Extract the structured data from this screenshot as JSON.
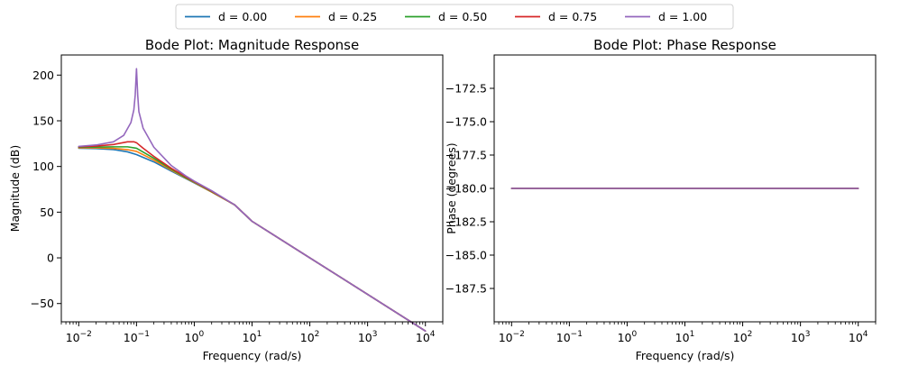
{
  "legend": {
    "placement": "top-center",
    "entries": [
      "d = 0.00",
      "d = 0.25",
      "d = 0.50",
      "d = 0.75",
      "d = 1.00"
    ]
  },
  "colors": {
    "series": [
      "#1f77b4",
      "#ff7f0e",
      "#2ca02c",
      "#d62728",
      "#9467bd"
    ],
    "axis": "#000000",
    "background": "#ffffff"
  },
  "chart_data": [
    {
      "type": "line",
      "title": "Bode Plot: Magnitude Response",
      "xlabel": "Frequency (rad/s)",
      "ylabel": "Magnitude (dB)",
      "xscale": "log",
      "xlim": [
        0.005,
        20000
      ],
      "ylim": [
        -70,
        222
      ],
      "grid": false,
      "xticks": [
        0.01,
        0.1,
        1,
        10,
        100,
        1000,
        10000
      ],
      "xtick_labels": [
        "10^-2",
        "10^-1",
        "10^0",
        "10^1",
        "10^2",
        "10^3",
        "10^4"
      ],
      "yticks": [
        -50,
        0,
        50,
        100,
        150,
        200
      ],
      "ytick_labels": [
        "−50",
        "0",
        "50",
        "100",
        "150",
        "200"
      ],
      "series": [
        {
          "name": "d = 0.00",
          "points": [
            [
              0.01,
              120
            ],
            [
              0.02,
              119.6
            ],
            [
              0.04,
              118.5
            ],
            [
              0.07,
              116
            ],
            [
              0.1,
              113
            ],
            [
              0.2,
              105
            ],
            [
              0.4,
              95
            ],
            [
              0.7,
              87
            ],
            [
              1,
              82
            ],
            [
              2,
              72
            ],
            [
              5,
              58
            ],
            [
              10,
              40
            ],
            [
              100,
              0
            ],
            [
              1000,
              -40
            ],
            [
              10000,
              -80
            ]
          ]
        },
        {
          "name": "d = 0.25",
          "points": [
            [
              0.01,
              120.5
            ],
            [
              0.02,
              120.3
            ],
            [
              0.04,
              119.8
            ],
            [
              0.07,
              118.4
            ],
            [
              0.1,
              116.5
            ],
            [
              0.2,
              107
            ],
            [
              0.4,
              96
            ],
            [
              0.7,
              87.5
            ],
            [
              1,
              82.5
            ],
            [
              2,
              72
            ],
            [
              5,
              58
            ],
            [
              10,
              40
            ],
            [
              100,
              0
            ],
            [
              1000,
              -40
            ],
            [
              10000,
              -80
            ]
          ]
        },
        {
          "name": "d = 0.50",
          "points": [
            [
              0.01,
              121
            ],
            [
              0.02,
              121.2
            ],
            [
              0.04,
              121.5
            ],
            [
              0.07,
              121.5
            ],
            [
              0.1,
              120
            ],
            [
              0.2,
              109
            ],
            [
              0.4,
              97
            ],
            [
              0.7,
              88
            ],
            [
              1,
              83
            ],
            [
              2,
              72.5
            ],
            [
              5,
              58
            ],
            [
              10,
              40
            ],
            [
              100,
              0
            ],
            [
              1000,
              -40
            ],
            [
              10000,
              -80
            ]
          ]
        },
        {
          "name": "d = 0.75",
          "points": [
            [
              0.01,
              121.5
            ],
            [
              0.02,
              122.3
            ],
            [
              0.04,
              124
            ],
            [
              0.07,
              127
            ],
            [
              0.09,
              127
            ],
            [
              0.1,
              126
            ],
            [
              0.13,
              120
            ],
            [
              0.2,
              111
            ],
            [
              0.4,
              98
            ],
            [
              0.7,
              89
            ],
            [
              1,
              83.5
            ],
            [
              2,
              73
            ],
            [
              5,
              58
            ],
            [
              10,
              40
            ],
            [
              100,
              0
            ],
            [
              1000,
              -40
            ],
            [
              10000,
              -80
            ]
          ]
        },
        {
          "name": "d = 1.00",
          "points": [
            [
              0.01,
              122
            ],
            [
              0.02,
              123.5
            ],
            [
              0.04,
              127
            ],
            [
              0.06,
              134
            ],
            [
              0.08,
              148
            ],
            [
              0.09,
              162
            ],
            [
              0.095,
              178
            ],
            [
              0.1,
              207
            ],
            [
              0.105,
              178
            ],
            [
              0.11,
              160
            ],
            [
              0.13,
              142
            ],
            [
              0.2,
              121
            ],
            [
              0.4,
              101
            ],
            [
              0.7,
              90
            ],
            [
              1,
              84
            ],
            [
              2,
              73.5
            ],
            [
              5,
              58
            ],
            [
              10,
              40
            ],
            [
              100,
              0
            ],
            [
              1000,
              -40
            ],
            [
              10000,
              -80
            ]
          ]
        }
      ]
    },
    {
      "type": "line",
      "title": "Bode Plot: Phase Response",
      "xlabel": "Frequency (rad/s)",
      "ylabel": "Phase (degrees)",
      "xscale": "log",
      "xlim": [
        0.005,
        20000
      ],
      "ylim": [
        -190,
        -170
      ],
      "grid": false,
      "xticks": [
        0.01,
        0.1,
        1,
        10,
        100,
        1000,
        10000
      ],
      "xtick_labels": [
        "10^-2",
        "10^-1",
        "10^0",
        "10^1",
        "10^2",
        "10^3",
        "10^4"
      ],
      "yticks": [
        -187.5,
        -185,
        -182.5,
        -180,
        -177.5,
        -175,
        -172.5
      ],
      "ytick_labels": [
        "−187.5",
        "−185.0",
        "−182.5",
        "−180.0",
        "−177.5",
        "−175.0",
        "−172.5"
      ],
      "series": [
        {
          "name": "d = 0.00",
          "points": [
            [
              0.01,
              -180
            ],
            [
              10000,
              -180
            ]
          ]
        },
        {
          "name": "d = 0.25",
          "points": [
            [
              0.01,
              -180
            ],
            [
              10000,
              -180
            ]
          ]
        },
        {
          "name": "d = 0.50",
          "points": [
            [
              0.01,
              -180
            ],
            [
              10000,
              -180
            ]
          ]
        },
        {
          "name": "d = 0.75",
          "points": [
            [
              0.01,
              -180
            ],
            [
              10000,
              -180
            ]
          ]
        },
        {
          "name": "d = 1.00",
          "points": [
            [
              0.01,
              -180
            ],
            [
              10000,
              -180
            ]
          ]
        }
      ]
    }
  ]
}
